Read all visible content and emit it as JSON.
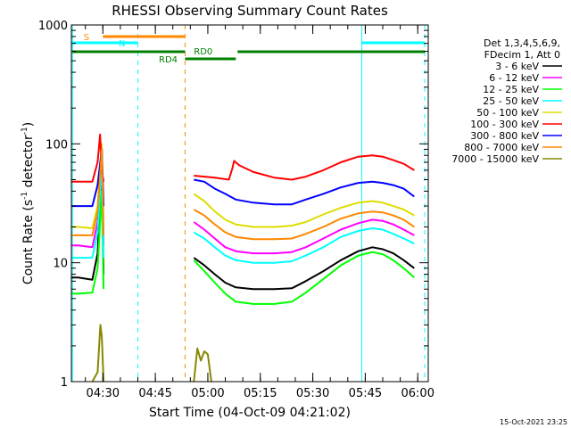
{
  "chart_data": {
    "type": "line",
    "title": "RHESSI Observing Summary Count Rates",
    "xlabel": "Start Time (04-Oct-09 04:21:02)",
    "ylabel_main": "Count Rate (s",
    "ylabel_sup1": "-1",
    "ylabel_mid": " detector",
    "ylabel_sup2": "-1",
    "ylabel_end": ")",
    "yscale": "log",
    "ylim": [
      1,
      1000
    ],
    "xlim_minutes": [
      0,
      102
    ],
    "y_ticks": [
      {
        "value": 1,
        "label": "1"
      },
      {
        "value": 10,
        "label": "10"
      },
      {
        "value": 100,
        "label": "100"
      },
      {
        "value": 1000,
        "label": "1000"
      }
    ],
    "x_ticks": [
      {
        "minute": 9,
        "label": "04:30"
      },
      {
        "minute": 24,
        "label": "04:45"
      },
      {
        "minute": 39,
        "label": "05:00"
      },
      {
        "minute": 54,
        "label": "05:15"
      },
      {
        "minute": 69,
        "label": "05:30"
      },
      {
        "minute": 84,
        "label": "05:45"
      },
      {
        "minute": 99,
        "label": "06:00"
      }
    ],
    "legend_header": [
      "Det 1,3,4,5,6,9,",
      "FDecim 1, Att 0"
    ],
    "series": [
      {
        "name": "3 - 6 keV",
        "color": "#000000",
        "points": [
          [
            0,
            7.5
          ],
          [
            2,
            7.5
          ],
          [
            6,
            7.2
          ],
          [
            7.5,
            12
          ],
          [
            8.7,
            70
          ],
          [
            9.2,
            8
          ],
          [
            35,
            11
          ],
          [
            38,
            9.5
          ],
          [
            41,
            8
          ],
          [
            44,
            6.8
          ],
          [
            47,
            6.2
          ],
          [
            52,
            6
          ],
          [
            58,
            6
          ],
          [
            63,
            6.1
          ],
          [
            67,
            7
          ],
          [
            72,
            8.5
          ],
          [
            77,
            10.5
          ],
          [
            82,
            12.5
          ],
          [
            86,
            13.5
          ],
          [
            89,
            13
          ],
          [
            92,
            12
          ],
          [
            95,
            10.5
          ],
          [
            98,
            9
          ]
        ]
      },
      {
        "name": "6 - 12 keV",
        "color": "#ff00ff",
        "points": [
          [
            0,
            14
          ],
          [
            2,
            14
          ],
          [
            6,
            13.5
          ],
          [
            7.5,
            22
          ],
          [
            8.7,
            90
          ],
          [
            9.2,
            14
          ],
          [
            35,
            22
          ],
          [
            38,
            19
          ],
          [
            41,
            16
          ],
          [
            44,
            13.5
          ],
          [
            47,
            12.5
          ],
          [
            52,
            12
          ],
          [
            58,
            12
          ],
          [
            63,
            12.3
          ],
          [
            67,
            13.5
          ],
          [
            72,
            16
          ],
          [
            77,
            19
          ],
          [
            82,
            21.5
          ],
          [
            86,
            23
          ],
          [
            89,
            22.5
          ],
          [
            92,
            21
          ],
          [
            95,
            19
          ],
          [
            98,
            17
          ]
        ]
      },
      {
        "name": "12 - 25 keV",
        "color": "#00ff00",
        "points": [
          [
            0,
            5.5
          ],
          [
            2,
            5.5
          ],
          [
            6,
            5.6
          ],
          [
            7.5,
            9
          ],
          [
            8.7,
            40
          ],
          [
            9.2,
            6
          ],
          [
            35,
            10.5
          ],
          [
            38,
            8.5
          ],
          [
            41,
            6.8
          ],
          [
            44,
            5.5
          ],
          [
            47,
            4.7
          ],
          [
            52,
            4.5
          ],
          [
            58,
            4.5
          ],
          [
            63,
            4.7
          ],
          [
            67,
            5.6
          ],
          [
            72,
            7.3
          ],
          [
            77,
            9.5
          ],
          [
            82,
            11.5
          ],
          [
            86,
            12.3
          ],
          [
            89,
            11.8
          ],
          [
            92,
            10.5
          ],
          [
            95,
            9
          ],
          [
            98,
            7.5
          ]
        ]
      },
      {
        "name": "25 - 50 keV",
        "color": "#00ffff",
        "points": [
          [
            0,
            11
          ],
          [
            2,
            11
          ],
          [
            6,
            11
          ],
          [
            7.5,
            18
          ],
          [
            8.7,
            70
          ],
          [
            9.2,
            11
          ],
          [
            35,
            18
          ],
          [
            38,
            16
          ],
          [
            41,
            13.5
          ],
          [
            44,
            11.5
          ],
          [
            47,
            10.5
          ],
          [
            52,
            10
          ],
          [
            58,
            10
          ],
          [
            63,
            10.3
          ],
          [
            67,
            11.5
          ],
          [
            72,
            13.5
          ],
          [
            77,
            16.5
          ],
          [
            82,
            18.5
          ],
          [
            86,
            19.5
          ],
          [
            89,
            19
          ],
          [
            92,
            17.5
          ],
          [
            95,
            16
          ],
          [
            98,
            14.5
          ]
        ]
      },
      {
        "name": "50 - 100 keV",
        "color": "#dddd00",
        "points": [
          [
            0,
            20
          ],
          [
            2,
            20
          ],
          [
            6,
            19.5
          ],
          [
            7.5,
            30
          ],
          [
            8.7,
            100
          ],
          [
            9.2,
            20
          ],
          [
            35,
            38
          ],
          [
            38,
            33
          ],
          [
            41,
            27
          ],
          [
            44,
            23
          ],
          [
            47,
            21
          ],
          [
            52,
            20
          ],
          [
            58,
            20
          ],
          [
            63,
            20.5
          ],
          [
            67,
            22
          ],
          [
            72,
            25.5
          ],
          [
            77,
            29
          ],
          [
            82,
            32
          ],
          [
            86,
            33
          ],
          [
            89,
            32
          ],
          [
            92,
            30
          ],
          [
            95,
            28
          ],
          [
            98,
            25
          ]
        ]
      },
      {
        "name": "100 - 300 keV",
        "color": "#ff0000",
        "points": [
          [
            0,
            48
          ],
          [
            2,
            48
          ],
          [
            6,
            48
          ],
          [
            7.5,
            70
          ],
          [
            8.2,
            120
          ],
          [
            8.7,
            60
          ],
          [
            9.2,
            48
          ],
          [
            35,
            54
          ],
          [
            41,
            52
          ],
          [
            45,
            50
          ],
          [
            46,
            62
          ],
          [
            46.5,
            72
          ],
          [
            48,
            66
          ],
          [
            52,
            58
          ],
          [
            58,
            52
          ],
          [
            63,
            50
          ],
          [
            67,
            53
          ],
          [
            72,
            60
          ],
          [
            77,
            70
          ],
          [
            82,
            78
          ],
          [
            86,
            80
          ],
          [
            89,
            78
          ],
          [
            92,
            73
          ],
          [
            95,
            68
          ],
          [
            98,
            60
          ]
        ]
      },
      {
        "name": "300 - 800 keV",
        "color": "#0000ff",
        "points": [
          [
            0,
            30
          ],
          [
            2,
            30
          ],
          [
            6,
            30
          ],
          [
            7.5,
            45
          ],
          [
            8.7,
            90
          ],
          [
            9.2,
            30
          ],
          [
            35,
            50
          ],
          [
            38,
            48
          ],
          [
            41,
            42
          ],
          [
            44,
            38
          ],
          [
            47,
            34
          ],
          [
            52,
            32
          ],
          [
            58,
            31
          ],
          [
            63,
            31
          ],
          [
            67,
            34
          ],
          [
            72,
            38
          ],
          [
            77,
            43
          ],
          [
            82,
            47
          ],
          [
            86,
            48
          ],
          [
            89,
            47
          ],
          [
            92,
            45
          ],
          [
            95,
            42
          ],
          [
            98,
            36
          ]
        ]
      },
      {
        "name": "800 - 7000 keV",
        "color": "#ff8800",
        "points": [
          [
            0,
            17
          ],
          [
            2,
            17
          ],
          [
            6,
            17
          ],
          [
            7.5,
            27
          ],
          [
            8.7,
            90
          ],
          [
            9.2,
            17
          ],
          [
            35,
            28
          ],
          [
            38,
            25
          ],
          [
            41,
            21
          ],
          [
            44,
            18
          ],
          [
            47,
            16.5
          ],
          [
            52,
            15.8
          ],
          [
            58,
            15.8
          ],
          [
            63,
            16
          ],
          [
            67,
            17.5
          ],
          [
            72,
            20
          ],
          [
            77,
            23.5
          ],
          [
            82,
            26
          ],
          [
            86,
            27
          ],
          [
            89,
            26.5
          ],
          [
            92,
            25
          ],
          [
            95,
            23
          ],
          [
            98,
            20
          ]
        ]
      },
      {
        "name": "7000 - 15000 keV",
        "color": "#888800",
        "points": [
          [
            6,
            1
          ],
          [
            7.5,
            1.2
          ],
          [
            8.3,
            3
          ],
          [
            8.7,
            2.4
          ],
          [
            9.2,
            1
          ],
          [
            35,
            1
          ],
          [
            36,
            1.9
          ],
          [
            37,
            1.5
          ],
          [
            38,
            1.8
          ],
          [
            39,
            1.7
          ],
          [
            40,
            1
          ],
          [
            99,
            1
          ]
        ]
      }
    ],
    "annotations": [
      {
        "label": "S",
        "color": "#ff8800"
      },
      {
        "label": "N",
        "color": "#00ffff"
      },
      {
        "label": "RD0",
        "color": "#008000"
      },
      {
        "label": "RD4",
        "color": "#008000"
      }
    ],
    "footer_timestamp": "15-Oct-2021 23:25"
  }
}
